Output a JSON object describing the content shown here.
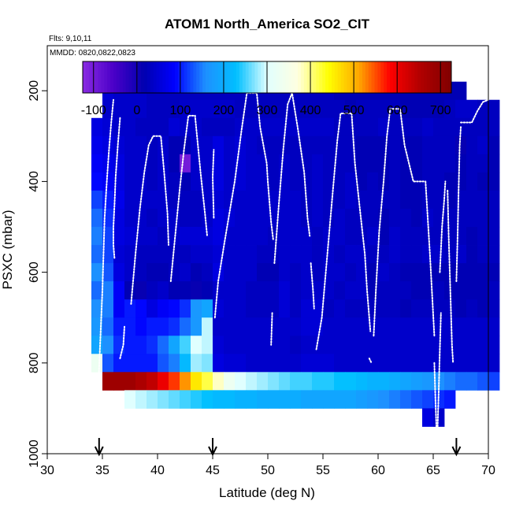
{
  "chart_data": {
    "type": "heatmap",
    "title": "ATOM1 North_America SO2_CIT",
    "subtitle_flights": "Flts: 9,10,11",
    "subtitle_dates": "MMDD: 0820,0822,0823",
    "xlabel": "Latitude (deg N)",
    "ylabel": "PSXC (mbar)",
    "xlim": [
      30,
      70
    ],
    "ylim": [
      1000,
      0
    ],
    "x_ticks": [
      "30",
      "35",
      "40",
      "45",
      "50",
      "55",
      "60",
      "65",
      "70"
    ],
    "y_ticks": [
      "200",
      "400",
      "600",
      "800",
      "1000"
    ],
    "colorbar": {
      "range": [
        -125,
        725
      ],
      "ticks": [
        "-100",
        "0",
        "100",
        "200",
        "300",
        "400",
        "500",
        "600",
        "700"
      ],
      "colors": [
        "#8a2be2",
        "#4b00c8",
        "#0000b0",
        "#0000ff",
        "#1e90ff",
        "#00bfff",
        "#e0ffff",
        "#ffffe0",
        "#ffff00",
        "#ffa500",
        "#ff0000",
        "#b00000",
        "#800000"
      ]
    },
    "cell_width_deg": 1,
    "cell_height_mbar": 40,
    "rows": [
      {
        "p_top": 180,
        "x_start": 35,
        "values": [
          50,
          40,
          40,
          40,
          30,
          30,
          30,
          30,
          30,
          30,
          30,
          30,
          30,
          30,
          30,
          30,
          30,
          30,
          30,
          30,
          30,
          20,
          20,
          20,
          20,
          20,
          20,
          20,
          20,
          20,
          20,
          20,
          20
        ]
      },
      {
        "p_top": 220,
        "x_start": 35,
        "values": [
          40,
          40,
          40,
          40,
          30,
          30,
          30,
          40,
          40,
          40,
          40,
          40,
          30,
          30,
          30,
          30,
          30,
          30,
          30,
          30,
          30,
          30,
          20,
          30,
          30,
          30,
          30,
          20,
          20,
          20,
          20,
          30,
          40,
          40,
          30,
          30
        ]
      },
      {
        "p_top": 260,
        "x_start": 34,
        "values": [
          60,
          50,
          40,
          40,
          30,
          30,
          30,
          50,
          40,
          40,
          30,
          30,
          30,
          40,
          40,
          40,
          40,
          40,
          40,
          40,
          40,
          40,
          30,
          30,
          30,
          30,
          40,
          30,
          30,
          30,
          40,
          30,
          30,
          30,
          30,
          30,
          30
        ]
      },
      {
        "p_top": 300,
        "x_start": 34,
        "values": [
          70,
          60,
          50,
          40,
          40,
          30,
          40,
          20,
          20,
          40,
          40,
          60,
          40,
          50,
          40,
          30,
          30,
          30,
          30,
          30,
          30,
          30,
          30,
          30,
          20,
          20,
          20,
          30,
          20,
          20,
          30,
          30,
          30,
          10,
          30,
          40,
          20
        ]
      },
      {
        "p_top": 340,
        "x_start": 34,
        "values": [
          80,
          70,
          60,
          40,
          40,
          30,
          40,
          20,
          -100,
          40,
          40,
          60,
          40,
          50,
          40,
          40,
          30,
          40,
          30,
          30,
          40,
          30,
          30,
          30,
          20,
          20,
          20,
          30,
          20,
          20,
          30,
          30,
          30,
          20,
          30,
          30,
          20
        ]
      },
      {
        "p_top": 380,
        "x_start": 34,
        "values": [
          90,
          80,
          60,
          40,
          40,
          30,
          40,
          30,
          20,
          40,
          40,
          60,
          40,
          50,
          40,
          40,
          30,
          40,
          30,
          30,
          40,
          30,
          30,
          40,
          20,
          30,
          20,
          30,
          20,
          20,
          30,
          30,
          20,
          20,
          30,
          20,
          20
        ]
      },
      {
        "p_top": 420,
        "x_start": 34,
        "values": [
          120,
          100,
          70,
          40,
          40,
          40,
          40,
          30,
          30,
          30,
          40,
          50,
          40,
          40,
          40,
          40,
          40,
          40,
          40,
          30,
          40,
          30,
          30,
          40,
          30,
          30,
          30,
          30,
          20,
          20,
          30,
          30,
          20,
          30,
          30,
          30,
          30
        ]
      },
      {
        "p_top": 460,
        "x_start": 34,
        "values": [
          140,
          110,
          60,
          40,
          40,
          30,
          40,
          40,
          30,
          30,
          40,
          60,
          50,
          40,
          40,
          40,
          40,
          40,
          40,
          30,
          40,
          30,
          40,
          30,
          30,
          30,
          20,
          30,
          30,
          20,
          40,
          30,
          30,
          30,
          30,
          30,
          30
        ]
      },
      {
        "p_top": 500,
        "x_start": 34,
        "values": [
          150,
          120,
          60,
          50,
          40,
          40,
          30,
          40,
          50,
          50,
          50,
          60,
          40,
          40,
          40,
          40,
          30,
          40,
          40,
          40,
          30,
          40,
          40,
          30,
          30,
          40,
          20,
          40,
          30,
          30,
          30,
          30,
          30,
          30,
          20,
          30,
          30
        ]
      },
      {
        "p_top": 540,
        "x_start": 34,
        "values": [
          140,
          120,
          50,
          40,
          30,
          30,
          30,
          30,
          30,
          40,
          40,
          50,
          40,
          40,
          40,
          30,
          30,
          40,
          40,
          40,
          30,
          40,
          30,
          40,
          40,
          30,
          30,
          40,
          30,
          30,
          40,
          40,
          30,
          40,
          20,
          30,
          30
        ]
      },
      {
        "p_top": 580,
        "x_start": 34,
        "values": [
          160,
          130,
          60,
          40,
          30,
          20,
          20,
          30,
          40,
          20,
          30,
          60,
          40,
          40,
          40,
          20,
          20,
          40,
          30,
          40,
          30,
          40,
          40,
          30,
          40,
          20,
          40,
          30,
          20,
          20,
          20,
          20,
          20,
          20,
          20,
          20,
          20
        ]
      },
      {
        "p_top": 620,
        "x_start": 34,
        "values": [
          140,
          150,
          80,
          20,
          10,
          30,
          40,
          20,
          20,
          10,
          20,
          40,
          40,
          40,
          30,
          30,
          30,
          50,
          30,
          40,
          40,
          40,
          30,
          40,
          40,
          20,
          30,
          30,
          30,
          20,
          20,
          30,
          20,
          20,
          20,
          20,
          30
        ]
      },
      {
        "p_top": 660,
        "x_start": 34,
        "values": [
          160,
          150,
          80,
          100,
          90,
          60,
          80,
          90,
          110,
          170,
          190,
          50,
          40,
          40,
          30,
          30,
          30,
          50,
          30,
          50,
          50,
          30,
          40,
          30,
          30,
          30,
          30,
          30,
          20,
          30,
          30,
          30,
          30,
          20,
          30,
          20,
          30
        ]
      },
      {
        "p_top": 700,
        "x_start": 34,
        "values": [
          170,
          140,
          100,
          100,
          90,
          100,
          100,
          110,
          140,
          170,
          290,
          40,
          40,
          40,
          40,
          40,
          40,
          40,
          40,
          50,
          50,
          40,
          40,
          40,
          40,
          40,
          40,
          40,
          40,
          40,
          40,
          40,
          40,
          40,
          40,
          40,
          40
        ]
      },
      {
        "p_top": 740,
        "x_start": 34,
        "values": [
          190,
          160,
          110,
          100,
          100,
          110,
          140,
          190,
          250,
          300,
          290,
          50,
          40,
          40,
          40,
          40,
          40,
          40,
          30,
          40,
          40,
          40,
          40,
          40,
          40,
          40,
          40,
          40,
          40,
          40,
          40,
          40,
          40,
          40,
          40,
          40,
          40
        ]
      },
      {
        "p_top": 780,
        "x_start": 34,
        "values": [
          330,
          130,
          100,
          100,
          100,
          100,
          130,
          150,
          220,
          280,
          270,
          60,
          50,
          50,
          40,
          40,
          40,
          40,
          40,
          50,
          50,
          50,
          40,
          40,
          40,
          40,
          40,
          40,
          40,
          40,
          40,
          40,
          40,
          40,
          40,
          40,
          40
        ]
      },
      {
        "p_top": 820,
        "x_start": 35,
        "values": [
          680,
          680,
          680,
          660,
          640,
          600,
          560,
          520,
          460,
          420,
          380,
          330,
          300,
          290,
          280,
          270,
          260,
          250,
          250,
          240,
          240,
          230,
          230,
          220,
          210,
          210,
          200,
          190,
          180,
          170,
          160,
          150,
          140,
          140,
          130,
          120
        ]
      },
      {
        "p_top": 860,
        "x_start": 37,
        "values": [
          300,
          290,
          280,
          270,
          260,
          250,
          240,
          230,
          220,
          220,
          210,
          210,
          200,
          200,
          200,
          200,
          190,
          190,
          190,
          190,
          190,
          180,
          170,
          160,
          150,
          140,
          130,
          120,
          110,
          100
        ]
      },
      {
        "p_top": 900,
        "x_start": 64,
        "values": [
          60,
          40
        ]
      }
    ],
    "flight_tracks": [
      [
        [
          34.6,
          870
        ],
        [
          35.0,
          640
        ],
        [
          35.2,
          480
        ],
        [
          35.4,
          400
        ],
        [
          35.6,
          330
        ],
        [
          35.8,
          270
        ],
        [
          36.0,
          220
        ]
      ],
      [
        [
          36.0,
          190
        ],
        [
          37.1,
          190
        ]
      ],
      [
        [
          36.6,
          260
        ],
        [
          36.4,
          320
        ],
        [
          36.2,
          390
        ],
        [
          36.1,
          450
        ],
        [
          36.0,
          500
        ],
        [
          36.0,
          540
        ],
        [
          36.1,
          570
        ]
      ],
      [
        [
          36.6,
          790
        ],
        [
          36.9,
          760
        ],
        [
          37.0,
          720
        ]
      ],
      [
        [
          37.6,
          670
        ],
        [
          38.0,
          560
        ],
        [
          38.4,
          460
        ],
        [
          38.8,
          380
        ],
        [
          39.2,
          320
        ],
        [
          39.6,
          300
        ],
        [
          40.3,
          300
        ],
        [
          40.6,
          380
        ],
        [
          40.9,
          470
        ],
        [
          41.0,
          540
        ]
      ],
      [
        [
          41.2,
          620
        ],
        [
          41.6,
          520
        ],
        [
          42.0,
          420
        ],
        [
          42.4,
          330
        ],
        [
          42.8,
          255
        ],
        [
          43.4,
          255
        ],
        [
          43.9,
          380
        ],
        [
          44.3,
          470
        ],
        [
          44.5,
          520
        ]
      ],
      [
        [
          45.1,
          480
        ],
        [
          45.0,
          390
        ],
        [
          45.1,
          330
        ]
      ],
      [
        [
          45.2,
          700
        ],
        [
          45.5,
          620
        ],
        [
          46.1,
          530
        ],
        [
          47.0,
          400
        ],
        [
          47.6,
          290
        ],
        [
          48.1,
          205
        ],
        [
          49.0,
          205
        ],
        [
          49.3,
          280
        ],
        [
          49.6,
          320
        ],
        [
          49.9,
          360
        ],
        [
          50.0,
          400
        ],
        [
          50.3,
          490
        ],
        [
          50.5,
          530
        ]
      ],
      [
        [
          50.4,
          690
        ],
        [
          50.3,
          760
        ]
      ],
      [
        [
          50.6,
          580
        ],
        [
          51.0,
          450
        ],
        [
          51.4,
          330
        ],
        [
          51.8,
          230
        ],
        [
          52.2,
          205
        ],
        [
          52.7,
          280
        ],
        [
          53.3,
          380
        ],
        [
          53.6,
          480
        ],
        [
          53.8,
          520
        ]
      ],
      [
        [
          53.9,
          580
        ],
        [
          54.1,
          640
        ],
        [
          54.2,
          680
        ]
      ],
      [
        [
          54.4,
          770
        ],
        [
          54.9,
          700
        ],
        [
          55.4,
          560
        ],
        [
          55.9,
          420
        ],
        [
          56.3,
          310
        ],
        [
          56.6,
          250
        ],
        [
          57.6,
          250
        ]
      ],
      [
        [
          57.6,
          250
        ],
        [
          57.9,
          360
        ],
        [
          58.3,
          450
        ],
        [
          58.8,
          560
        ],
        [
          59.0,
          640
        ],
        [
          59.2,
          700
        ],
        [
          59.3,
          730
        ]
      ],
      [
        [
          59.2,
          790
        ],
        [
          59.4,
          800
        ]
      ],
      [
        [
          59.6,
          740
        ],
        [
          59.8,
          640
        ],
        [
          60.1,
          510
        ],
        [
          60.5,
          400
        ],
        [
          60.8,
          300
        ],
        [
          61.1,
          240
        ],
        [
          62.0,
          240
        ],
        [
          62.4,
          320
        ],
        [
          62.8,
          360
        ],
        [
          63.2,
          400
        ],
        [
          64.2,
          400
        ]
      ],
      [
        [
          64.3,
          400
        ],
        [
          64.5,
          480
        ],
        [
          64.7,
          560
        ],
        [
          64.9,
          650
        ],
        [
          65.1,
          740
        ]
      ],
      [
        [
          65.1,
          800
        ],
        [
          65.2,
          880
        ],
        [
          65.3,
          950
        ]
      ],
      [
        [
          65.4,
          940
        ],
        [
          65.5,
          860
        ],
        [
          65.6,
          770
        ],
        [
          65.7,
          690
        ]
      ],
      [
        [
          65.6,
          600
        ],
        [
          65.8,
          500
        ],
        [
          66.0,
          440
        ],
        [
          66.1,
          400
        ]
      ],
      [
        [
          66.3,
          420
        ],
        [
          66.4,
          520
        ],
        [
          66.5,
          600
        ],
        [
          66.6,
          680
        ],
        [
          66.7,
          760
        ],
        [
          66.8,
          800
        ]
      ],
      [
        [
          67.1,
          620
        ],
        [
          67.2,
          530
        ],
        [
          67.3,
          420
        ],
        [
          67.4,
          320
        ],
        [
          67.5,
          280
        ]
      ],
      [
        [
          67.5,
          270
        ],
        [
          68.5,
          270
        ],
        [
          69.0,
          245
        ],
        [
          69.5,
          225
        ],
        [
          70.0,
          220
        ]
      ]
    ],
    "arrows_latitude": [
      34.7,
      45.0,
      67.1
    ]
  }
}
